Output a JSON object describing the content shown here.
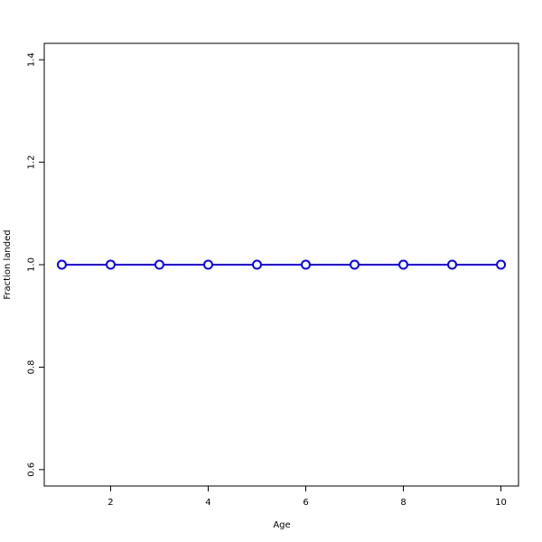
{
  "chart_data": {
    "type": "line",
    "title": "",
    "xlabel": "Age",
    "ylabel": "Fraction landed",
    "x": [
      1,
      2,
      3,
      4,
      5,
      6,
      7,
      8,
      9,
      10
    ],
    "series": [
      {
        "values": [
          1,
          1,
          1,
          1,
          1,
          1,
          1,
          1,
          1,
          1
        ],
        "color": "#0000ff",
        "marker": "open-circle"
      }
    ],
    "xlim": [
      0.64,
      10.36
    ],
    "ylim": [
      0.568,
      1.432
    ],
    "xticks": [
      2,
      4,
      6,
      8,
      10
    ],
    "xtick_labels": [
      "2",
      "4",
      "6",
      "8",
      "10"
    ],
    "yticks": [
      0.6,
      0.8,
      1.0,
      1.2,
      1.4
    ],
    "ytick_labels": [
      "0.6",
      "0.8",
      "1.0",
      "1.2",
      "1.4"
    ],
    "grid": false
  }
}
